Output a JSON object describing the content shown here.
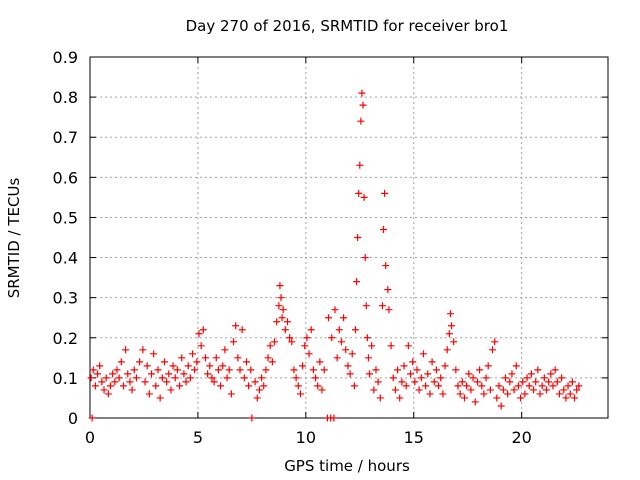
{
  "chart_data": {
    "type": "scatter",
    "title": "Day 270 of 2016, SRMTID for receiver bro1",
    "xlabel": "GPS time / hours",
    "ylabel": "SRMTID / TECUs",
    "xlim": [
      0,
      24
    ],
    "ylim": [
      0,
      0.9
    ],
    "xticks": [
      0,
      5,
      10,
      15,
      20
    ],
    "xtick_labels": [
      "0",
      "5",
      "10",
      "15",
      "20"
    ],
    "yticks": [
      0,
      0.1,
      0.2,
      0.3,
      0.4,
      0.5,
      0.6,
      0.7,
      0.8,
      0.9
    ],
    "ytick_labels": [
      "0",
      "0.1",
      "0.2",
      "0.3",
      "0.4",
      "0.5",
      "0.6",
      "0.7",
      "0.8",
      "0.9"
    ],
    "grid": true,
    "marker": "plus",
    "color": "#ff0000",
    "series": [
      {
        "name": "SRMTID",
        "points": [
          [
            0.05,
            0.1
          ],
          [
            0.1,
            0.0
          ],
          [
            0.15,
            0.12
          ],
          [
            0.25,
            0.08
          ],
          [
            0.35,
            0.11
          ],
          [
            0.45,
            0.13
          ],
          [
            0.55,
            0.09
          ],
          [
            0.65,
            0.07
          ],
          [
            0.75,
            0.1
          ],
          [
            0.85,
            0.06
          ],
          [
            0.95,
            0.08
          ],
          [
            1.05,
            0.11
          ],
          [
            1.15,
            0.09
          ],
          [
            1.25,
            0.12
          ],
          [
            1.35,
            0.1
          ],
          [
            1.45,
            0.14
          ],
          [
            1.55,
            0.08
          ],
          [
            1.65,
            0.17
          ],
          [
            1.75,
            0.11
          ],
          [
            1.85,
            0.09
          ],
          [
            1.95,
            0.07
          ],
          [
            2.05,
            0.12
          ],
          [
            2.15,
            0.1
          ],
          [
            2.3,
            0.14
          ],
          [
            2.45,
            0.17
          ],
          [
            2.55,
            0.09
          ],
          [
            2.65,
            0.13
          ],
          [
            2.75,
            0.06
          ],
          [
            2.85,
            0.11
          ],
          [
            2.95,
            0.16
          ],
          [
            3.05,
            0.08
          ],
          [
            3.15,
            0.12
          ],
          [
            3.25,
            0.05
          ],
          [
            3.35,
            0.1
          ],
          [
            3.45,
            0.14
          ],
          [
            3.55,
            0.09
          ],
          [
            3.65,
            0.11
          ],
          [
            3.75,
            0.07
          ],
          [
            3.85,
            0.13
          ],
          [
            3.95,
            0.1
          ],
          [
            4.05,
            0.12
          ],
          [
            4.15,
            0.08
          ],
          [
            4.25,
            0.15
          ],
          [
            4.35,
            0.11
          ],
          [
            4.45,
            0.09
          ],
          [
            4.55,
            0.13
          ],
          [
            4.65,
            0.1
          ],
          [
            4.75,
            0.16
          ],
          [
            4.85,
            0.12
          ],
          [
            4.95,
            0.14
          ],
          [
            5.05,
            0.21
          ],
          [
            5.15,
            0.18
          ],
          [
            5.25,
            0.22
          ],
          [
            5.35,
            0.15
          ],
          [
            5.45,
            0.11
          ],
          [
            5.55,
            0.13
          ],
          [
            5.65,
            0.1
          ],
          [
            5.75,
            0.09
          ],
          [
            5.85,
            0.15
          ],
          [
            5.95,
            0.12
          ],
          [
            6.05,
            0.08
          ],
          [
            6.15,
            0.13
          ],
          [
            6.25,
            0.17
          ],
          [
            6.35,
            0.1
          ],
          [
            6.45,
            0.12
          ],
          [
            6.55,
            0.06
          ],
          [
            6.65,
            0.19
          ],
          [
            6.75,
            0.23
          ],
          [
            6.85,
            0.15
          ],
          [
            6.95,
            0.12
          ],
          [
            7.05,
            0.22
          ],
          [
            7.15,
            0.1
          ],
          [
            7.25,
            0.14
          ],
          [
            7.35,
            0.08
          ],
          [
            7.45,
            0.12
          ],
          [
            7.5,
            0.0
          ],
          [
            7.65,
            0.09
          ],
          [
            7.75,
            0.05
          ],
          [
            7.85,
            0.07
          ],
          [
            7.95,
            0.1
          ],
          [
            8.05,
            0.08
          ],
          [
            8.15,
            0.12
          ],
          [
            8.25,
            0.15
          ],
          [
            8.35,
            0.18
          ],
          [
            8.45,
            0.14
          ],
          [
            8.55,
            0.19
          ],
          [
            8.65,
            0.24
          ],
          [
            8.75,
            0.28
          ],
          [
            8.8,
            0.33
          ],
          [
            8.85,
            0.3
          ],
          [
            8.9,
            0.25
          ],
          [
            8.95,
            0.27
          ],
          [
            9.05,
            0.22
          ],
          [
            9.15,
            0.24
          ],
          [
            9.25,
            0.2
          ],
          [
            9.35,
            0.19
          ],
          [
            9.45,
            0.12
          ],
          [
            9.55,
            0.1
          ],
          [
            9.65,
            0.08
          ],
          [
            9.75,
            0.06
          ],
          [
            9.85,
            0.13
          ],
          [
            9.95,
            0.18
          ],
          [
            10.05,
            0.2
          ],
          [
            10.15,
            0.16
          ],
          [
            10.25,
            0.22
          ],
          [
            10.35,
            0.12
          ],
          [
            10.45,
            0.1
          ],
          [
            10.55,
            0.08
          ],
          [
            10.65,
            0.14
          ],
          [
            10.75,
            0.07
          ],
          [
            10.85,
            0.12
          ],
          [
            11.0,
            0.0
          ],
          [
            11.05,
            0.25
          ],
          [
            11.15,
            0.0
          ],
          [
            11.2,
            0.2
          ],
          [
            11.3,
            0.0
          ],
          [
            11.35,
            0.27
          ],
          [
            11.45,
            0.15
          ],
          [
            11.55,
            0.22
          ],
          [
            11.65,
            0.19
          ],
          [
            11.75,
            0.25
          ],
          [
            11.85,
            0.17
          ],
          [
            11.95,
            0.13
          ],
          [
            12.05,
            0.11
          ],
          [
            12.15,
            0.16
          ],
          [
            12.25,
            0.08
          ],
          [
            12.3,
            0.22
          ],
          [
            12.35,
            0.34
          ],
          [
            12.4,
            0.45
          ],
          [
            12.45,
            0.56
          ],
          [
            12.5,
            0.63
          ],
          [
            12.55,
            0.74
          ],
          [
            12.6,
            0.81
          ],
          [
            12.65,
            0.78
          ],
          [
            12.7,
            0.55
          ],
          [
            12.75,
            0.4
          ],
          [
            12.8,
            0.28
          ],
          [
            12.85,
            0.2
          ],
          [
            12.9,
            0.15
          ],
          [
            12.95,
            0.11
          ],
          [
            13.05,
            0.18
          ],
          [
            13.15,
            0.07
          ],
          [
            13.25,
            0.12
          ],
          [
            13.35,
            0.09
          ],
          [
            13.45,
            0.05
          ],
          [
            13.55,
            0.28
          ],
          [
            13.6,
            0.47
          ],
          [
            13.65,
            0.56
          ],
          [
            13.7,
            0.38
          ],
          [
            13.8,
            0.32
          ],
          [
            13.85,
            0.27
          ],
          [
            13.95,
            0.18
          ],
          [
            14.05,
            0.1
          ],
          [
            14.15,
            0.07
          ],
          [
            14.25,
            0.12
          ],
          [
            14.35,
            0.05
          ],
          [
            14.45,
            0.09
          ],
          [
            14.55,
            0.13
          ],
          [
            14.65,
            0.08
          ],
          [
            14.75,
            0.18
          ],
          [
            14.85,
            0.11
          ],
          [
            14.95,
            0.14
          ],
          [
            15.05,
            0.09
          ],
          [
            15.15,
            0.12
          ],
          [
            15.25,
            0.07
          ],
          [
            15.35,
            0.1
          ],
          [
            15.45,
            0.16
          ],
          [
            15.55,
            0.08
          ],
          [
            15.65,
            0.11
          ],
          [
            15.75,
            0.06
          ],
          [
            15.85,
            0.14
          ],
          [
            15.95,
            0.09
          ],
          [
            16.05,
            0.12
          ],
          [
            16.15,
            0.08
          ],
          [
            16.25,
            0.1
          ],
          [
            16.35,
            0.06
          ],
          [
            16.45,
            0.13
          ],
          [
            16.55,
            0.17
          ],
          [
            16.65,
            0.21
          ],
          [
            16.7,
            0.26
          ],
          [
            16.75,
            0.23
          ],
          [
            16.85,
            0.19
          ],
          [
            16.95,
            0.12
          ],
          [
            17.05,
            0.08
          ],
          [
            17.15,
            0.06
          ],
          [
            17.25,
            0.09
          ],
          [
            17.35,
            0.05
          ],
          [
            17.45,
            0.08
          ],
          [
            17.55,
            0.11
          ],
          [
            17.65,
            0.07
          ],
          [
            17.75,
            0.1
          ],
          [
            17.85,
            0.04
          ],
          [
            17.95,
            0.09
          ],
          [
            18.05,
            0.12
          ],
          [
            18.15,
            0.08
          ],
          [
            18.25,
            0.06
          ],
          [
            18.35,
            0.1
          ],
          [
            18.45,
            0.13
          ],
          [
            18.55,
            0.07
          ],
          [
            18.65,
            0.17
          ],
          [
            18.75,
            0.19
          ],
          [
            18.85,
            0.05
          ],
          [
            18.95,
            0.08
          ],
          [
            19.05,
            0.03
          ],
          [
            19.15,
            0.07
          ],
          [
            19.25,
            0.1
          ],
          [
            19.35,
            0.06
          ],
          [
            19.45,
            0.09
          ],
          [
            19.55,
            0.11
          ],
          [
            19.65,
            0.07
          ],
          [
            19.75,
            0.13
          ],
          [
            19.85,
            0.08
          ],
          [
            19.95,
            0.05
          ],
          [
            20.05,
            0.09
          ],
          [
            20.15,
            0.06
          ],
          [
            20.25,
            0.1
          ],
          [
            20.35,
            0.08
          ],
          [
            20.45,
            0.11
          ],
          [
            20.55,
            0.07
          ],
          [
            20.65,
            0.09
          ],
          [
            20.75,
            0.12
          ],
          [
            20.85,
            0.06
          ],
          [
            20.95,
            0.08
          ],
          [
            21.05,
            0.1
          ],
          [
            21.15,
            0.07
          ],
          [
            21.25,
            0.09
          ],
          [
            21.35,
            0.11
          ],
          [
            21.45,
            0.08
          ],
          [
            21.55,
            0.12
          ],
          [
            21.65,
            0.09
          ],
          [
            21.75,
            0.06
          ],
          [
            21.85,
            0.1
          ],
          [
            21.95,
            0.07
          ],
          [
            22.05,
            0.05
          ],
          [
            22.15,
            0.08
          ],
          [
            22.25,
            0.06
          ],
          [
            22.35,
            0.09
          ],
          [
            22.45,
            0.05
          ],
          [
            22.55,
            0.07
          ],
          [
            22.65,
            0.08
          ]
        ]
      }
    ]
  }
}
